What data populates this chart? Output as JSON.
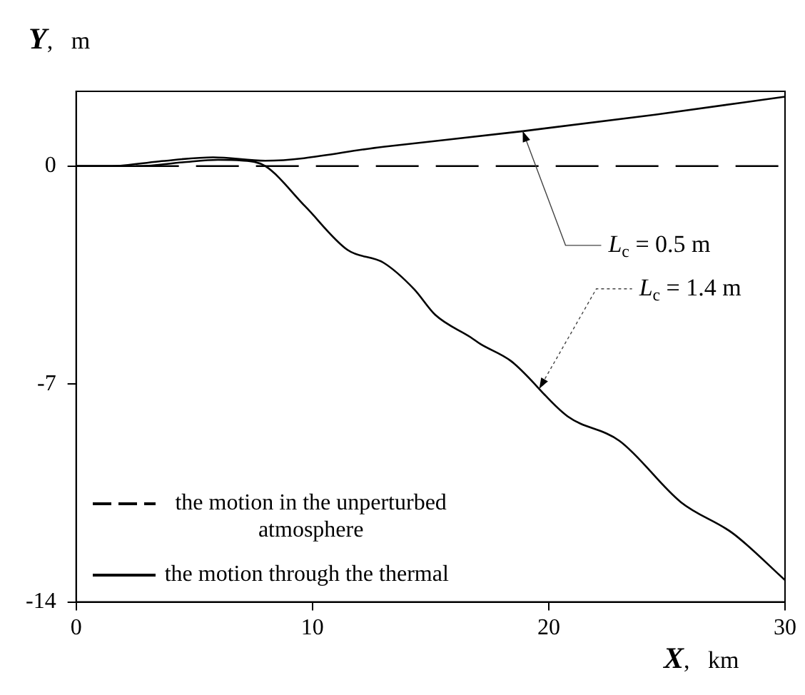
{
  "chart_data": {
    "type": "line",
    "xlabel": "X, km",
    "ylabel": "Y, m",
    "xlim": [
      0,
      30
    ],
    "ylim": [
      -14,
      2.4
    ],
    "xticks": [
      0,
      10,
      20,
      30
    ],
    "yticks": [
      0,
      -7,
      -14
    ],
    "grid": false,
    "legend": "bottom left",
    "marker": "none",
    "series": [
      {
        "name": "the motion in the unperturbed atmosphere",
        "color": "#000000",
        "line_style": "dashed",
        "x": [
          0,
          30
        ],
        "values": [
          0,
          0
        ]
      },
      {
        "name": "the motion through the thermal",
        "color": "#000000",
        "line_style": "solid",
        "x": [
          0,
          1.5,
          3.5,
          5.8,
          8,
          13,
          18.9,
          24.5,
          30
        ],
        "values": [
          0,
          0,
          0.15,
          0.28,
          0.17,
          0.62,
          1.12,
          1.65,
          2.23
        ]
      },
      {
        "color": "#000000",
        "line_style": "solid",
        "x": [
          0,
          2.7,
          4.5,
          6,
          7,
          8,
          9.7,
          11.5,
          13,
          14.3,
          15.2,
          16.7,
          17.1,
          18.4,
          20.8,
          23,
          25.6,
          27.8,
          30
        ],
        "values": [
          0,
          0,
          0.12,
          0.2,
          0.18,
          0,
          -1.3,
          -2.7,
          -3.1,
          -3.95,
          -4.78,
          -5.5,
          -5.71,
          -6.26,
          -8.04,
          -8.83,
          -10.8,
          -11.8,
          -13.3
        ]
      }
    ],
    "annotations": [
      {
        "text": "L$_{c}$ = 0.5 m",
        "x": 18.9,
        "y": 1.12
      },
      {
        "text": "L$_{c}$ = 1.4 m",
        "x": 19.6,
        "y": -7.15
      }
    ]
  }
}
